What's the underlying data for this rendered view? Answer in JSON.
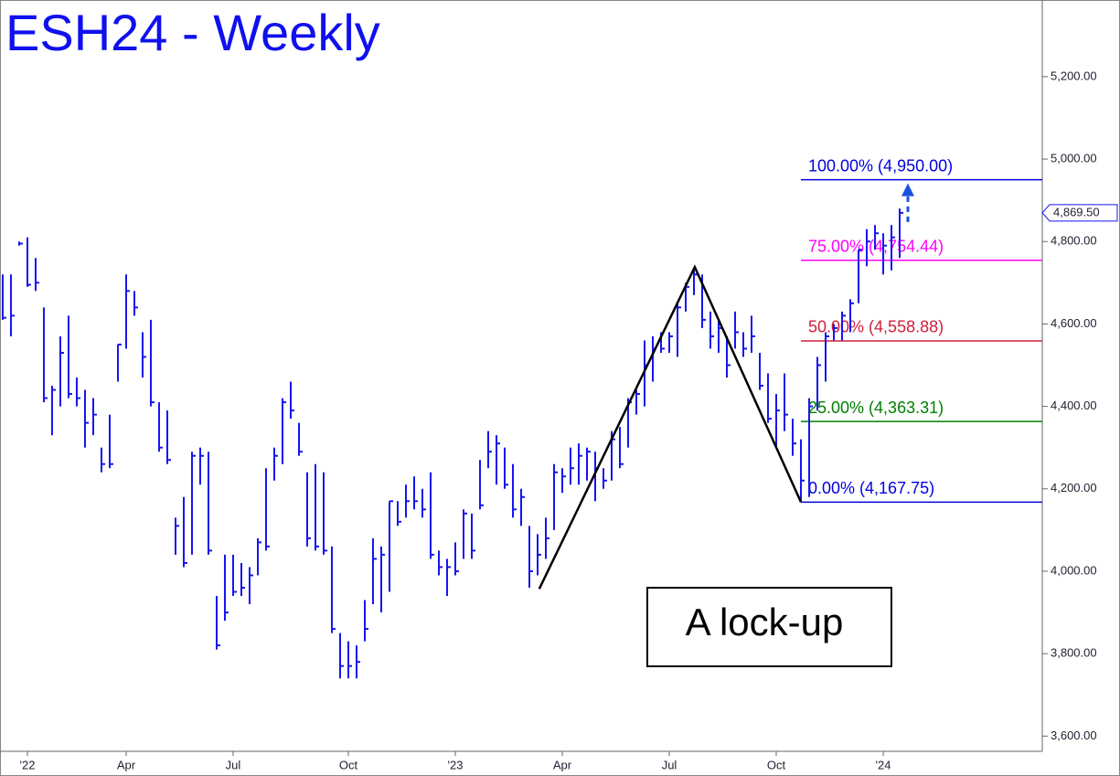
{
  "chart_data": {
    "type": "ohlc",
    "title": "ESH24 - Weekly",
    "color": "#1515f0",
    "categories": [
      null,
      null,
      null,
      null,
      null,
      null,
      null,
      null,
      null,
      null,
      null,
      null,
      null,
      null,
      null,
      null,
      null,
      null,
      null,
      null,
      null,
      null,
      null,
      null,
      null,
      null,
      null,
      null,
      null,
      null,
      null,
      null,
      null,
      null,
      null,
      null,
      null,
      null,
      null,
      null,
      null,
      null,
      null,
      null,
      null,
      null,
      null,
      null,
      null,
      null,
      null,
      null,
      null,
      null,
      null,
      null,
      null,
      null,
      null,
      null,
      null,
      null,
      null,
      null,
      null,
      null,
      null,
      null,
      null,
      null,
      null,
      null,
      null,
      null,
      null,
      null,
      null,
      null,
      null,
      null,
      null,
      null,
      null,
      null,
      null,
      null,
      null,
      null,
      null,
      null,
      null,
      null,
      null,
      null,
      null,
      null,
      null,
      null,
      null,
      null,
      null,
      null,
      null,
      null,
      null,
      null,
      null,
      null,
      null,
      null
    ],
    "high": [
      4720,
      4720,
      4800,
      4810,
      4760,
      4640,
      4450,
      4570,
      4620,
      4470,
      4440,
      4420,
      4300,
      4380,
      4550,
      4720,
      4680,
      4580,
      4610,
      4410,
      4390,
      4130,
      4180,
      4290,
      4300,
      4290,
      3940,
      4040,
      4040,
      4020,
      4010,
      4080,
      4250,
      4300,
      4420,
      4460,
      4360,
      4240,
      4260,
      4240,
      4060,
      3850,
      3830,
      3820,
      3930,
      4080,
      4060,
      4170,
      4170,
      4210,
      4230,
      4200,
      4240,
      4050,
      4030,
      4070,
      4150,
      4140,
      4270,
      4340,
      4330,
      4300,
      4260,
      4200,
      4110,
      4090,
      4130,
      4260,
      4250,
      4300,
      4310,
      4300,
      4290,
      4250,
      4340,
      4350,
      4420,
      4440,
      4560,
      4570,
      4580,
      4580,
      4650,
      4700,
      4730,
      4720,
      4630,
      4610,
      4570,
      4630,
      4580,
      4620,
      4530,
      4480,
      4430,
      4480,
      4370,
      4320,
      4420,
      4520,
      4580,
      4600,
      4630,
      4660,
      4780,
      4830,
      4840,
      4820,
      4840,
      4880
    ],
    "low": [
      4610,
      4570,
      4790,
      4690,
      4680,
      4410,
      4330,
      4400,
      4420,
      4400,
      4300,
      4330,
      4240,
      4250,
      4460,
      4540,
      4620,
      4470,
      4400,
      4290,
      4260,
      4040,
      4010,
      4040,
      4210,
      4040,
      3810,
      3880,
      3940,
      3940,
      3920,
      3990,
      4050,
      4220,
      4260,
      4370,
      4280,
      4060,
      4050,
      4040,
      3850,
      3740,
      3740,
      3740,
      3830,
      3920,
      3900,
      3950,
      4110,
      4130,
      4150,
      4130,
      4030,
      3990,
      3940,
      3990,
      4030,
      4030,
      4150,
      4250,
      4210,
      4200,
      4130,
      4110,
      3960,
      3990,
      4030,
      4100,
      4190,
      4210,
      4210,
      4220,
      4170,
      4200,
      4220,
      4250,
      4300,
      4380,
      4400,
      4460,
      4530,
      4530,
      4520,
      4630,
      4670,
      4590,
      4540,
      4530,
      4470,
      4540,
      4520,
      4530,
      4440,
      4360,
      4300,
      4340,
      4280,
      4170,
      4180,
      4390,
      4460,
      4560,
      4560,
      4580,
      4650,
      4740,
      4780,
      4720,
      4730,
      4760
    ],
    "close": [
      4615,
      4620,
      4795,
      4695,
      4700,
      4420,
      4440,
      4530,
      4430,
      4420,
      4360,
      4380,
      4260,
      4260,
      4550,
      4680,
      4640,
      4520,
      4410,
      4300,
      4270,
      4110,
      4020,
      4280,
      4280,
      4050,
      3820,
      3900,
      3950,
      3960,
      3990,
      4070,
      4060,
      4280,
      4410,
      4390,
      4290,
      4080,
      4060,
      4050,
      3860,
      3770,
      3770,
      3780,
      3860,
      4030,
      4040,
      4170,
      4120,
      4170,
      4170,
      4150,
      4040,
      4010,
      4010,
      4000,
      4140,
      4050,
      4160,
      4290,
      4310,
      4210,
      4150,
      4180,
      4000,
      4040,
      4080,
      4240,
      4230,
      4250,
      4280,
      4290,
      4250,
      4220,
      4320,
      4260,
      4410,
      4430,
      4500,
      4540,
      4540,
      4570,
      4640,
      4690,
      4720,
      4610,
      4570,
      4590,
      4500,
      4580,
      4540,
      4570,
      4450,
      4370,
      4390,
      4380,
      4310,
      4220,
      4400,
      4500,
      4570,
      4590,
      4620,
      4650,
      4780,
      4800,
      4820,
      4790,
      4810,
      4869.5
    ],
    "xlim": [
      -0.33,
      126.33
    ],
    "xticks": [
      {
        "value": 3,
        "label": "'22"
      },
      {
        "value": 15,
        "label": "Apr"
      },
      {
        "value": 28,
        "label": "Jul"
      },
      {
        "value": 42,
        "label": "Oct"
      },
      {
        "value": 55,
        "label": "'23"
      },
      {
        "value": 68,
        "label": "Apr"
      },
      {
        "value": 81,
        "label": "Jul"
      },
      {
        "value": 94,
        "label": "Oct"
      },
      {
        "value": 107,
        "label": "'24"
      }
    ],
    "ylim": [
      3563,
      5386
    ],
    "yticks": [
      {
        "value": 3600,
        "label": "3,600.00"
      },
      {
        "value": 3800,
        "label": "3,800.00"
      },
      {
        "value": 4000,
        "label": "4,000.00"
      },
      {
        "value": 4200,
        "label": "4,200.00"
      },
      {
        "value": 4400,
        "label": "4,400.00"
      },
      {
        "value": 4600,
        "label": "4,600.00"
      },
      {
        "value": 4800,
        "label": "4,800.00"
      },
      {
        "value": 5000,
        "label": "5,000.00"
      },
      {
        "value": 5200,
        "label": "5,200.00"
      }
    ],
    "last_price": {
      "value": 4869.5,
      "label": "4,869.50"
    },
    "levels": [
      {
        "value": 4950,
        "label": "100.00% (4,950.00)",
        "color": "#0000dd"
      },
      {
        "value": 4754.44,
        "label": "75.00% (4,754.44)",
        "color": "#ff00ff"
      },
      {
        "value": 4558.88,
        "label": "50.00% (4,558.88)",
        "color": "#d0203c"
      },
      {
        "value": 4363.31,
        "label": "25.00% (4,363.31)",
        "color": "#008000"
      },
      {
        "value": 4167.75,
        "label": "0.00% (4,167.75)",
        "color": "#0000dd"
      }
    ],
    "pattern": {
      "x": [
        65.2,
        84.1,
        97
      ],
      "y": [
        3957,
        4738,
        4167.75
      ]
    },
    "annotation": "A lock-up"
  }
}
